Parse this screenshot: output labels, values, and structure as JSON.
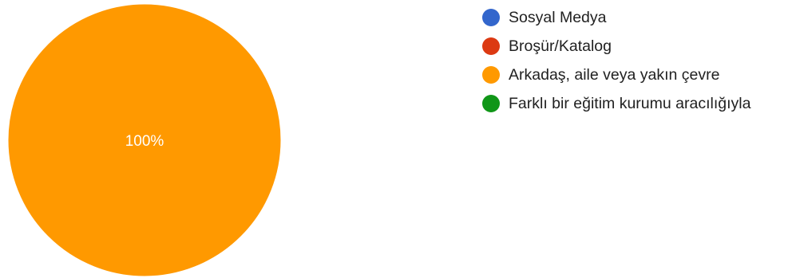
{
  "chart_data": {
    "type": "pie",
    "title": "",
    "slices": [
      {
        "label": "Sosyal Medya",
        "value": 0,
        "color": "#3366cc"
      },
      {
        "label": "Broşür/Katalog",
        "value": 0,
        "color": "#dc3912"
      },
      {
        "label": "Arkadaş, aile veya yakın çevre",
        "value": 100,
        "color": "#ff9900"
      },
      {
        "label": "Farklı bir eğitim kurumu aracılığıyla",
        "value": 0,
        "color": "#109618"
      }
    ],
    "data_labels": [
      {
        "slice": "Arkadaş, aile veya yakın çevre",
        "text": "100%"
      }
    ],
    "legend_position": "right"
  }
}
